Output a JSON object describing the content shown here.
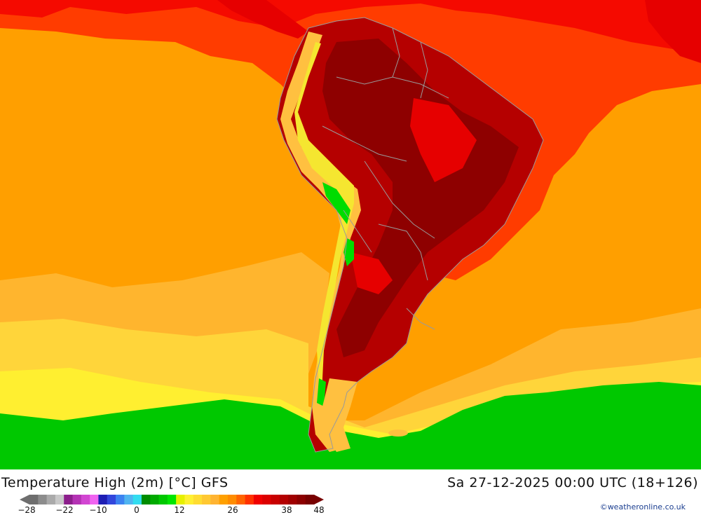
{
  "title": "Temperature High (2m) [°C] GFS",
  "datetime": "Sa 27-12-2025 00:00 UTC (18+126)",
  "credit": "©weatheronline.co.uk",
  "legend": {
    "ticks": [
      "-28",
      "-22",
      "-10",
      "0",
      "12",
      "26",
      "38",
      "48"
    ],
    "colors": [
      "#6e6e6e",
      "#8c8c8c",
      "#aaaaaa",
      "#c8c8c8",
      "#8c1e8c",
      "#b432b4",
      "#d246d2",
      "#f064f0",
      "#1e1eb4",
      "#3246dc",
      "#3c82f0",
      "#50b4f0",
      "#32dcf0",
      "#008c00",
      "#00aa00",
      "#00c800",
      "#00e600",
      "#e6f000",
      "#fff032",
      "#ffdc32",
      "#ffc832",
      "#ffb432",
      "#ffa000",
      "#ff8c00",
      "#ff6400",
      "#ff3200",
      "#f00000",
      "#dc0000",
      "#c80000",
      "#b40000",
      "#a00000",
      "#8c0000",
      "#780000"
    ]
  },
  "map": {
    "colors": {
      "ocean_warm": "#ff9f00",
      "ocean_hot": "#ff3c00",
      "tropics": "#f50a00",
      "ocean_mild": "#ffb52e",
      "ocean_cool": "#ffd53a",
      "ocean_cold": "#ffef30",
      "ocean_frigid": "#00c800",
      "land_hot": "#b50000",
      "land_very_hot": "#8e0000",
      "land_warm": "#e60000",
      "andes": "#ffc040",
      "highland": "#f5e630",
      "highland_cool": "#00dc00",
      "borders": "#9a9a9a"
    }
  }
}
